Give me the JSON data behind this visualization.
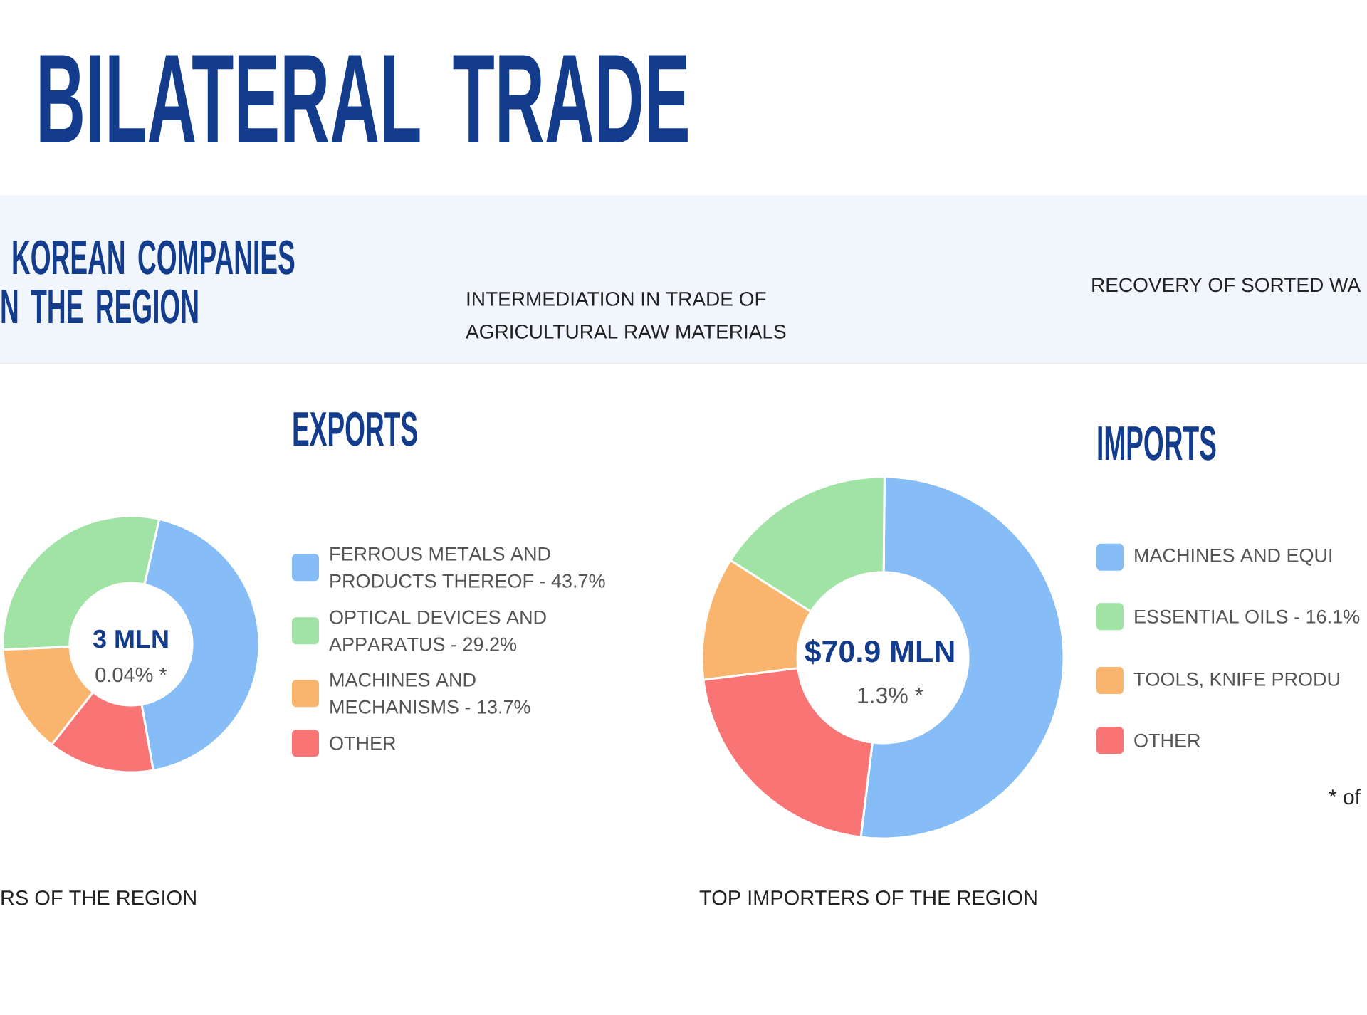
{
  "chart_data": [
    {
      "type": "other",
      "title": "BILATERAL TRADE",
      "annotations": [
        "KOREAN COMPANIES",
        "N THE REGION",
        "INTERMEDIATION IN TRADE OF AGRICULTURAL RAW MATERIALS",
        "RECOVERY OF SORTED WA",
        "RS OF THE REGION",
        "TOP IMPORTERS OF THE REGION"
      ]
    },
    {
      "type": "donut",
      "title": "EXPORTS",
      "categories": [
        "FERROUS METALS AND PRODUCTS THEREOF - 43.7%",
        "OPTICAL DEVICES AND APPARATUS - 29.2%",
        "MACHINES AND MECHANISMS - 13.7%",
        "OTHER"
      ],
      "values": [
        43.7,
        29.2,
        13.7,
        13.4
      ],
      "colors": [
        "#86BDF6",
        "#A0E3A5",
        "#F9B56D",
        "#F97474"
      ],
      "legend": "right",
      "annotations": [
        "3 MLN",
        "0.04% *"
      ]
    },
    {
      "type": "donut",
      "title": "IMPORTS",
      "categories": [
        "MACHINES AND EQUI",
        "ESSENTIAL OILS - 16.1%",
        "TOOLS, KNIFE PRODU",
        "OTHER"
      ],
      "values": [
        51.8,
        16.1,
        11.0,
        21.1
      ],
      "colors": [
        "#86BDF6",
        "#A0E3A5",
        "#F9B56D",
        "#F97474"
      ],
      "legend": "right",
      "annotations": [
        "$70.9 MLN",
        "1.3% *",
        "* of"
      ]
    }
  ]
}
